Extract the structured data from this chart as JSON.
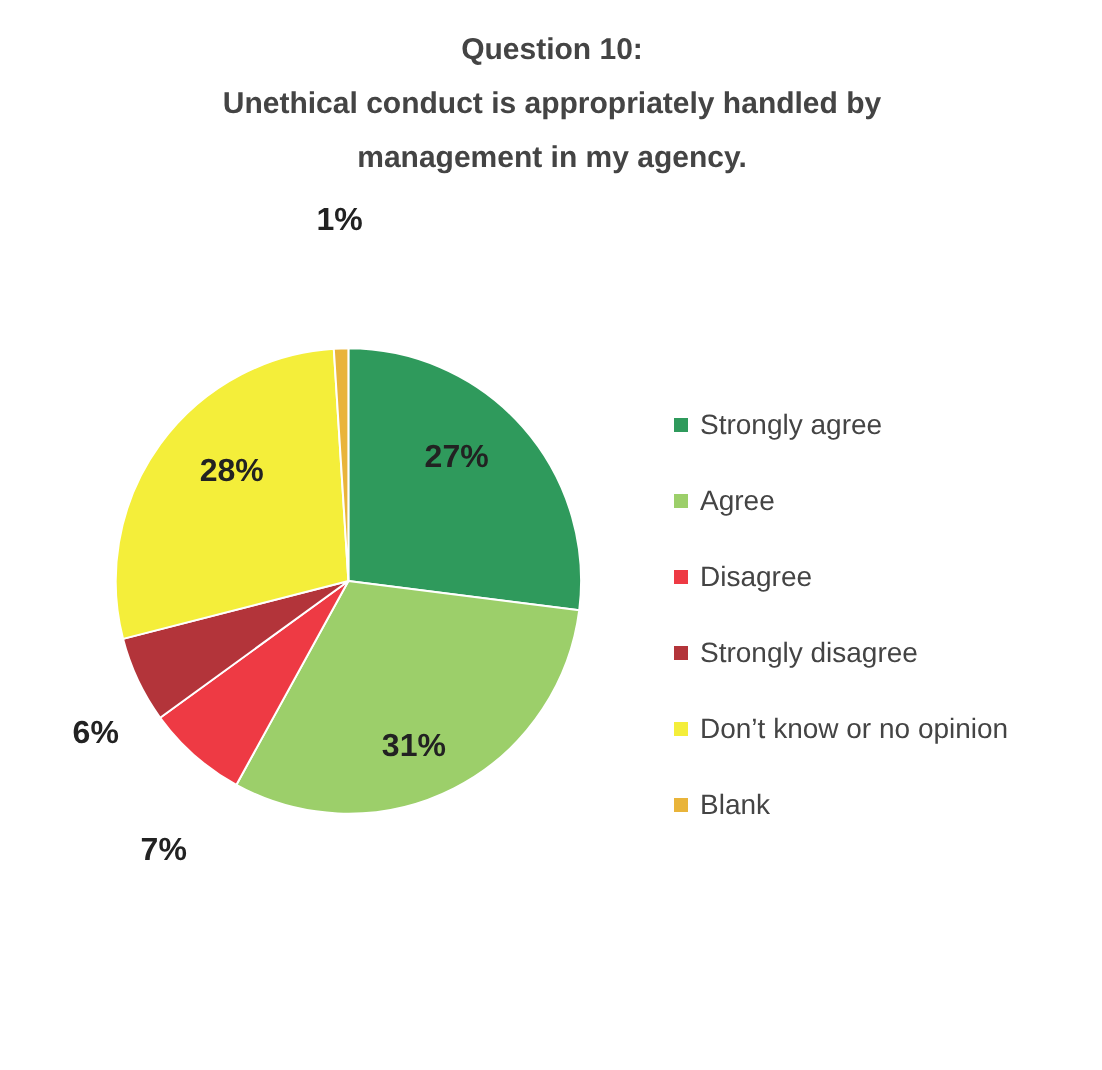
{
  "chart_data": {
    "type": "pie",
    "title": "Question 10:\nUnethical conduct is appropriately handled by\nmanagement in my agency.",
    "categories": [
      "Strongly agree",
      "Agree",
      "Disagree",
      "Strongly disagree",
      "Don’t know or no opinion",
      "Blank"
    ],
    "values": [
      27,
      31,
      7,
      6,
      28,
      1
    ],
    "colors": [
      "#2f9a5c",
      "#9ccf6a",
      "#ee3a44",
      "#b3343a",
      "#f4ee3a",
      "#e9b43a"
    ],
    "value_labels": [
      "27%",
      "31%",
      "7%",
      "6%",
      "28%",
      "1%"
    ],
    "legend": "right"
  }
}
